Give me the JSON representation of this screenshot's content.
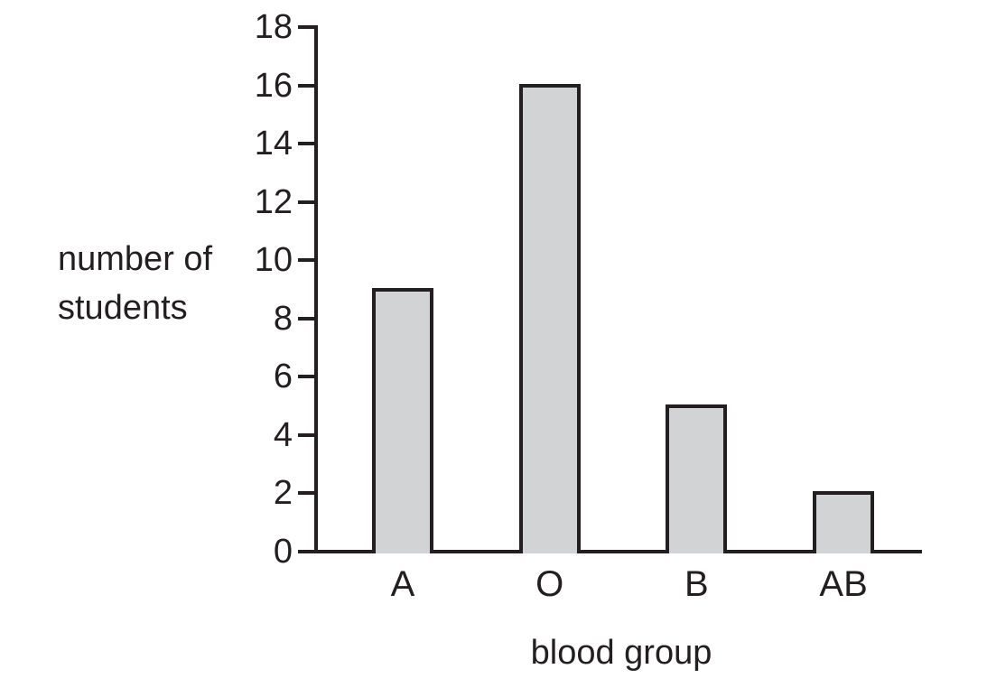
{
  "chart_data": {
    "type": "bar",
    "title": "",
    "categories": [
      "A",
      "O",
      "B",
      "AB"
    ],
    "values": [
      9,
      16,
      5,
      2
    ],
    "xlabel": "blood group",
    "ylabel": "number of students",
    "ylim": [
      0,
      18
    ],
    "yticks": [
      0,
      2,
      4,
      6,
      8,
      10,
      12,
      14,
      16,
      18
    ],
    "grid": false,
    "legend_position": "none",
    "colors": {
      "bar_fill": "#d1d3d4",
      "bar_stroke": "#231f20",
      "axis": "#231f20",
      "text": "#231f20",
      "background": "#ffffff"
    }
  }
}
